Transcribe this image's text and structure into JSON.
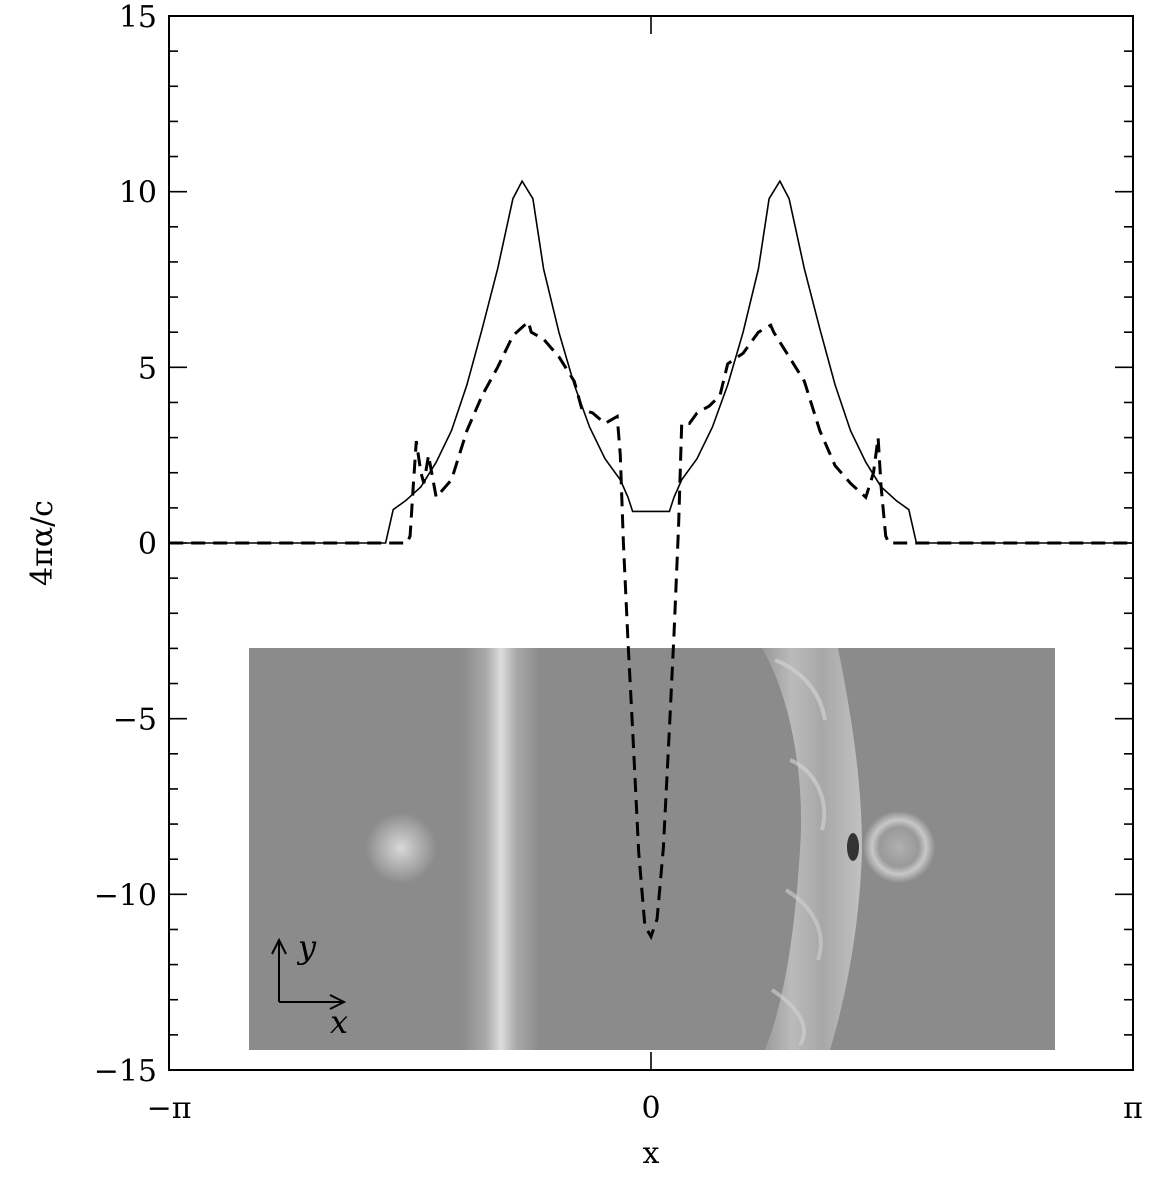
{
  "chart_data": {
    "type": "line",
    "xlabel": "x",
    "ylabel": "4πα/c",
    "xlim": [
      -3.14159,
      3.14159
    ],
    "ylim": [
      -15,
      15
    ],
    "x_tick_labels": [
      "−π",
      "0",
      "π"
    ],
    "x_tick_values": [
      -3.14159,
      0,
      3.14159
    ],
    "y_tick_labels": [
      "15",
      "10",
      "5",
      "0",
      "−5",
      "−10",
      "−15"
    ],
    "y_tick_values": [
      15,
      10,
      5,
      0,
      -5,
      -10,
      -15
    ],
    "grid": false,
    "legend": "none",
    "series": [
      {
        "style": "solid",
        "x": [
          -3.14,
          -1.73,
          -1.68,
          -1.6,
          -1.5,
          -1.4,
          -1.3,
          -1.2,
          -1.1,
          -1.0,
          -0.9,
          -0.84,
          -0.77,
          -0.7,
          -0.6,
          -0.5,
          -0.4,
          -0.3,
          -0.2,
          -0.15,
          -0.12,
          0.12,
          0.15,
          0.2,
          0.3,
          0.4,
          0.5,
          0.6,
          0.7,
          0.77,
          0.84,
          0.9,
          1.0,
          1.1,
          1.2,
          1.3,
          1.4,
          1.5,
          1.6,
          1.68,
          1.73,
          3.14
        ],
        "y": [
          0,
          0,
          0.95,
          1.2,
          1.6,
          2.3,
          3.2,
          4.5,
          6.1,
          7.8,
          9.8,
          10.3,
          9.8,
          7.8,
          6.0,
          4.5,
          3.3,
          2.4,
          1.8,
          1.3,
          0.9,
          0.9,
          1.3,
          1.8,
          2.4,
          3.3,
          4.5,
          6.0,
          7.8,
          9.8,
          10.3,
          9.8,
          7.8,
          6.1,
          4.5,
          3.2,
          2.3,
          1.6,
          1.2,
          0.95,
          0.0,
          0
        ]
      },
      {
        "style": "dashed",
        "x": [
          -3.14,
          -1.59,
          -1.57,
          -1.55,
          -1.53,
          -1.5,
          -1.48,
          -1.45,
          -1.4,
          -1.3,
          -1.2,
          -1.1,
          -1.0,
          -0.9,
          -0.8,
          -0.78,
          -0.7,
          -0.6,
          -0.5,
          -0.45,
          -0.38,
          -0.3,
          -0.22,
          -0.2,
          -0.18,
          -0.15,
          -0.12,
          -0.08,
          -0.04,
          0,
          0.04,
          0.08,
          0.12,
          0.15,
          0.18,
          0.2,
          0.25,
          0.3,
          0.38,
          0.45,
          0.5,
          0.6,
          0.7,
          0.78,
          0.8,
          0.9,
          1.0,
          1.1,
          1.2,
          1.3,
          1.4,
          1.45,
          1.48,
          1.5,
          1.53,
          1.55,
          1.57,
          1.59,
          3.14
        ],
        "y": [
          0,
          0,
          0.2,
          1.6,
          2.9,
          2.0,
          1.7,
          2.5,
          1.3,
          1.8,
          3.2,
          4.2,
          5.0,
          5.9,
          6.3,
          6.0,
          5.8,
          5.3,
          4.6,
          3.8,
          3.7,
          3.4,
          3.6,
          2.5,
          0,
          -2.8,
          -5.3,
          -8.8,
          -10.9,
          -11.2,
          -10.7,
          -8.7,
          -5.3,
          -2.6,
          0.5,
          3.4,
          3.4,
          3.7,
          3.9,
          4.2,
          5.1,
          5.4,
          6.0,
          6.2,
          6.0,
          5.3,
          4.6,
          3.2,
          2.2,
          1.7,
          1.3,
          2.0,
          3.0,
          1.6,
          0.2,
          0,
          0,
          0,
          0
        ]
      }
    ],
    "inset": {
      "type": "image",
      "axis_labels": [
        "y",
        "x"
      ]
    }
  }
}
